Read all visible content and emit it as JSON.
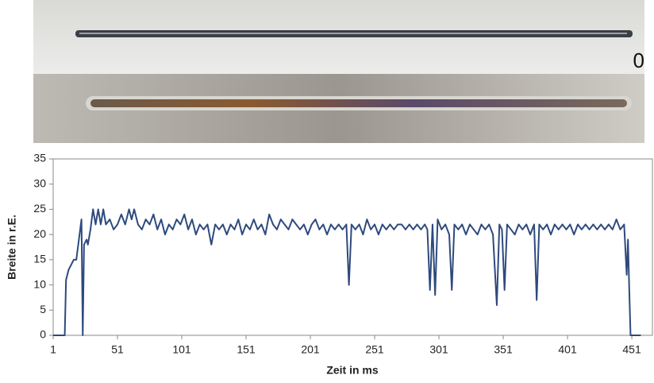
{
  "photo_label": "0",
  "chart_data": {
    "type": "line",
    "x_label": "Zeit in ms",
    "y_label": "Breite in r.E.",
    "x": [
      1,
      5,
      10,
      11,
      13,
      15,
      17,
      19,
      21,
      23,
      24,
      25,
      27,
      28,
      30,
      32,
      34,
      36,
      38,
      40,
      42,
      45,
      48,
      51,
      54,
      57,
      60,
      62,
      64,
      67,
      70,
      73,
      76,
      79,
      82,
      85,
      88,
      91,
      94,
      97,
      100,
      103,
      106,
      109,
      112,
      115,
      118,
      121,
      124,
      127,
      130,
      133,
      136,
      139,
      142,
      145,
      148,
      151,
      154,
      157,
      160,
      163,
      166,
      169,
      172,
      175,
      178,
      181,
      184,
      187,
      190,
      193,
      196,
      199,
      202,
      205,
      208,
      211,
      214,
      217,
      220,
      223,
      226,
      229,
      231,
      233,
      236,
      239,
      242,
      245,
      248,
      251,
      254,
      257,
      260,
      263,
      266,
      269,
      272,
      275,
      278,
      281,
      284,
      287,
      290,
      292,
      294,
      296,
      298,
      300,
      303,
      306,
      309,
      311,
      313,
      316,
      319,
      322,
      325,
      328,
      331,
      334,
      337,
      340,
      343,
      346,
      348,
      350,
      352,
      354,
      357,
      360,
      363,
      366,
      369,
      372,
      375,
      377,
      379,
      382,
      385,
      388,
      391,
      394,
      397,
      400,
      403,
      406,
      409,
      412,
      415,
      418,
      421,
      424,
      427,
      430,
      433,
      436,
      439,
      442,
      445,
      447,
      448,
      449,
      450,
      458
    ],
    "series": [
      {
        "name": "Breite",
        "color": "#2e4a7d",
        "values": [
          0,
          0,
          0,
          11,
          13,
          14,
          15,
          15,
          19,
          23,
          0,
          18,
          19,
          18,
          21,
          25,
          22,
          25,
          22,
          25,
          22,
          23,
          21,
          22,
          24,
          22,
          25,
          23,
          25,
          22,
          21,
          23,
          22,
          24,
          21,
          23,
          20,
          22,
          21,
          23,
          22,
          24,
          21,
          23,
          20,
          22,
          21,
          22,
          18,
          22,
          21,
          22,
          20,
          22,
          21,
          23,
          20,
          22,
          21,
          23,
          21,
          22,
          20,
          24,
          22,
          21,
          23,
          22,
          21,
          23,
          22,
          21,
          22,
          20,
          22,
          23,
          21,
          22,
          20,
          22,
          21,
          22,
          21,
          22,
          10,
          22,
          21,
          22,
          20,
          23,
          21,
          22,
          20,
          22,
          21,
          22,
          21,
          22,
          22,
          21,
          22,
          21,
          22,
          21,
          22,
          21,
          9,
          22,
          8,
          23,
          21,
          22,
          20,
          9,
          22,
          21,
          22,
          20,
          22,
          21,
          20,
          22,
          21,
          22,
          20,
          6,
          22,
          21,
          9,
          22,
          21,
          20,
          22,
          21,
          22,
          20,
          22,
          7,
          22,
          21,
          22,
          20,
          22,
          21,
          22,
          21,
          22,
          20,
          22,
          21,
          22,
          21,
          22,
          21,
          22,
          21,
          22,
          21,
          23,
          21,
          22,
          12,
          19,
          9,
          0,
          0
        ]
      }
    ],
    "xlim": [
      1,
      467
    ],
    "ylim": [
      0,
      35
    ],
    "xticks": [
      1,
      51,
      101,
      151,
      201,
      251,
      301,
      351,
      401,
      451
    ],
    "yticks": [
      0,
      5,
      10,
      15,
      20,
      25,
      30,
      35
    ],
    "grid": false
  }
}
